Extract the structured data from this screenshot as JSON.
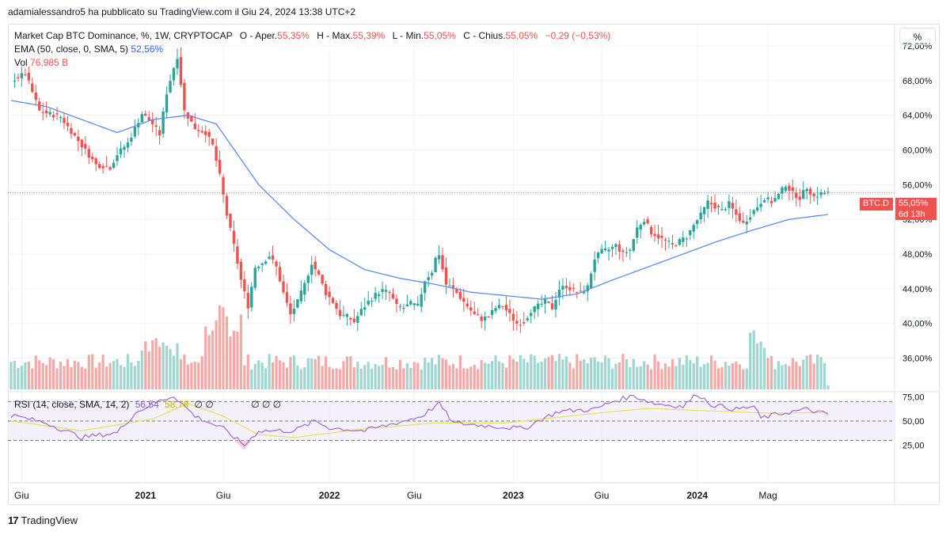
{
  "header": {
    "published": "adamialessandro5 ha pubblicato su TradingView.com il Giu 24, 2024 13:38 UTC+2"
  },
  "legend": {
    "title": "Market Cap BTC Dominance, %, 1W, CRYPTOCAP",
    "o_label": "O - Aper.",
    "o_value": "55,35%",
    "h_label": "H - Max.",
    "h_value": "55,39%",
    "l_label": "L - Min.",
    "l_value": "55,05%",
    "c_label": "C - Chius.",
    "c_value": "55,05%",
    "change": "−0,29 (−0,53%)",
    "ema_label": "EMA (50, close, 0, SMA, 5)",
    "ema_value": "52,56%",
    "vol_label": "Vol",
    "vol_value": "76,985 B",
    "rsi_label": "RSI (14, close, SMA, 14, 2)",
    "rsi_value": "56,54",
    "rsi_sma": "58,78",
    "rsi_extra1": "∅ ∅",
    "rsi_extra2": "∅ ∅ ∅"
  },
  "scale_button": "%",
  "price_tag": {
    "symbol": "BTC.D",
    "value": "55,05%",
    "countdown": "6d 13h"
  },
  "footer": {
    "brand": "TradingView"
  },
  "colors": {
    "up": "#26a69a",
    "down": "#ef5350",
    "ema": "#5b8def",
    "rsi": "#9c6ade",
    "rsi_sma": "#e4e35a"
  },
  "chart_data": {
    "type": "candlestick",
    "timeframe": "1W",
    "y_axis_ticks": [
      "72,00%",
      "68,00%",
      "64,00%",
      "60,00%",
      "56,00%",
      "52,00%",
      "48,00%",
      "44,00%",
      "40,00%",
      "36,00%"
    ],
    "ylim": [
      32.4,
      74.0
    ],
    "x_axis_ticks": [
      "Giu",
      "2021",
      "Giu",
      "2022",
      "Giu",
      "2023",
      "Giu",
      "2024",
      "Mag"
    ],
    "close_path": [
      [
        0,
        68.0
      ],
      [
        4,
        68.8
      ],
      [
        8,
        64.5
      ],
      [
        14,
        63.8
      ],
      [
        20,
        60.5
      ],
      [
        24,
        58.3
      ],
      [
        28,
        58.0
      ],
      [
        30,
        59.5
      ],
      [
        33,
        60.8
      ],
      [
        37,
        64.2
      ],
      [
        40,
        63.0
      ],
      [
        42,
        61.8
      ],
      [
        44,
        66.6
      ],
      [
        46,
        69.5
      ],
      [
        47,
        70.8
      ],
      [
        49,
        64.5
      ],
      [
        52,
        62.5
      ],
      [
        55,
        62.0
      ],
      [
        57,
        60.5
      ],
      [
        59,
        57.0
      ],
      [
        61,
        52.5
      ],
      [
        63,
        49.0
      ],
      [
        65,
        45.0
      ],
      [
        67,
        42.0
      ],
      [
        69,
        46.5
      ],
      [
        71,
        47.0
      ],
      [
        73,
        47.8
      ],
      [
        75,
        46.5
      ],
      [
        77,
        43.5
      ],
      [
        79,
        41.0
      ],
      [
        81,
        42.5
      ],
      [
        83,
        44.5
      ],
      [
        85,
        47.0
      ],
      [
        87,
        45.5
      ],
      [
        89,
        43.5
      ],
      [
        91,
        42.5
      ],
      [
        93,
        41.0
      ],
      [
        95,
        40.8
      ],
      [
        97,
        40.2
      ],
      [
        99,
        41.5
      ],
      [
        101,
        42.5
      ],
      [
        103,
        43.3
      ],
      [
        105,
        43.8
      ],
      [
        107,
        43.5
      ],
      [
        109,
        42.0
      ],
      [
        111,
        41.8
      ],
      [
        113,
        42.3
      ],
      [
        115,
        42.0
      ],
      [
        117,
        45.0
      ],
      [
        119,
        46.0
      ],
      [
        120,
        47.5
      ],
      [
        121,
        48.0
      ],
      [
        123,
        44.5
      ],
      [
        125,
        44.0
      ],
      [
        127,
        43.0
      ],
      [
        129,
        42.0
      ],
      [
        131,
        41.0
      ],
      [
        133,
        40.5
      ],
      [
        135,
        40.8
      ],
      [
        137,
        41.8
      ],
      [
        139,
        42.0
      ],
      [
        141,
        41.0
      ],
      [
        143,
        40.0
      ],
      [
        145,
        40.2
      ],
      [
        147,
        41.5
      ],
      [
        149,
        42.0
      ],
      [
        151,
        42.5
      ],
      [
        153,
        41.8
      ],
      [
        155,
        44.0
      ],
      [
        157,
        44.3
      ],
      [
        159,
        43.8
      ],
      [
        161,
        43.5
      ],
      [
        163,
        44.2
      ],
      [
        165,
        47.5
      ],
      [
        167,
        48.3
      ],
      [
        169,
        48.5
      ],
      [
        171,
        49.0
      ],
      [
        173,
        48.0
      ],
      [
        175,
        48.5
      ],
      [
        177,
        51.0
      ],
      [
        179,
        52.0
      ],
      [
        181,
        50.5
      ],
      [
        183,
        50.0
      ],
      [
        185,
        49.5
      ],
      [
        187,
        49.0
      ],
      [
        189,
        49.5
      ],
      [
        191,
        50.0
      ],
      [
        193,
        51.3
      ],
      [
        195,
        52.5
      ],
      [
        197,
        54.0
      ],
      [
        199,
        53.5
      ],
      [
        201,
        53.0
      ],
      [
        203,
        53.8
      ],
      [
        205,
        52.5
      ],
      [
        207,
        51.5
      ],
      [
        209,
        52.5
      ],
      [
        211,
        53.5
      ],
      [
        213,
        54.5
      ],
      [
        215,
        54.0
      ],
      [
        217,
        54.8
      ],
      [
        219,
        56.0
      ],
      [
        221,
        55.0
      ],
      [
        223,
        54.5
      ],
      [
        225,
        55.7
      ],
      [
        227,
        54.6
      ],
      [
        229,
        55.0
      ],
      [
        231,
        55.05
      ]
    ],
    "ema_50_path": [
      [
        0,
        65.7
      ],
      [
        10,
        65.0
      ],
      [
        20,
        63.5
      ],
      [
        30,
        62.0
      ],
      [
        40,
        63.5
      ],
      [
        50,
        64.0
      ],
      [
        58,
        63.0
      ],
      [
        70,
        56.0
      ],
      [
        80,
        52.0
      ],
      [
        90,
        48.5
      ],
      [
        100,
        46.2
      ],
      [
        110,
        45.2
      ],
      [
        120,
        44.5
      ],
      [
        130,
        43.6
      ],
      [
        140,
        43.2
      ],
      [
        150,
        42.8
      ],
      [
        160,
        43.4
      ],
      [
        170,
        45.0
      ],
      [
        180,
        46.5
      ],
      [
        190,
        48.0
      ],
      [
        200,
        49.5
      ],
      [
        210,
        50.8
      ],
      [
        220,
        52.0
      ],
      [
        231,
        52.56
      ]
    ],
    "rsi_path": [
      [
        0,
        56
      ],
      [
        10,
        48
      ],
      [
        20,
        33
      ],
      [
        30,
        38
      ],
      [
        35,
        58
      ],
      [
        40,
        68
      ],
      [
        46,
        76
      ],
      [
        52,
        55
      ],
      [
        60,
        42
      ],
      [
        66,
        25
      ],
      [
        70,
        40
      ],
      [
        80,
        40
      ],
      [
        86,
        50
      ],
      [
        90,
        43
      ],
      [
        100,
        40
      ],
      [
        110,
        49
      ],
      [
        116,
        55
      ],
      [
        121,
        68
      ],
      [
        125,
        48
      ],
      [
        135,
        45
      ],
      [
        145,
        42
      ],
      [
        150,
        52
      ],
      [
        155,
        60
      ],
      [
        165,
        62
      ],
      [
        170,
        70
      ],
      [
        176,
        76
      ],
      [
        182,
        68
      ],
      [
        190,
        65
      ],
      [
        194,
        78
      ],
      [
        198,
        67
      ],
      [
        205,
        62
      ],
      [
        210,
        65
      ],
      [
        212,
        53
      ],
      [
        218,
        58
      ],
      [
        225,
        62
      ],
      [
        231,
        56.54
      ]
    ],
    "rsi_sma_path": [
      [
        0,
        50
      ],
      [
        20,
        40
      ],
      [
        40,
        52
      ],
      [
        50,
        68
      ],
      [
        60,
        55
      ],
      [
        70,
        36
      ],
      [
        80,
        33
      ],
      [
        100,
        42
      ],
      [
        120,
        48
      ],
      [
        140,
        48
      ],
      [
        160,
        56
      ],
      [
        180,
        63
      ],
      [
        200,
        60
      ],
      [
        215,
        58
      ],
      [
        231,
        58.78
      ]
    ],
    "rsi_ticks": [
      "75,00",
      "50,00",
      "25,00"
    ],
    "rsi_levels": {
      "upper": 70,
      "middle": 50,
      "lower": 30
    },
    "volume_note": "weekly volume bars, last value 76,985 B"
  }
}
